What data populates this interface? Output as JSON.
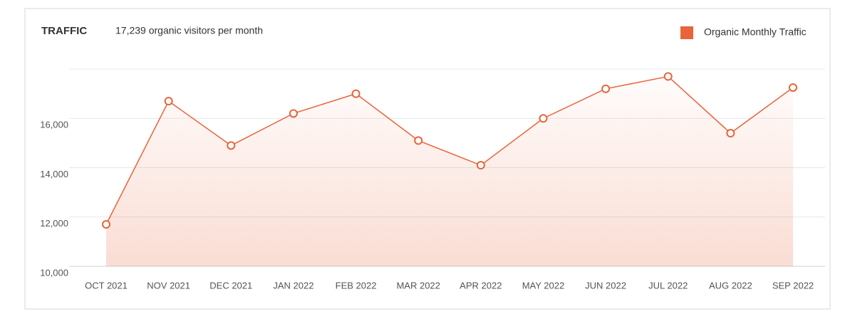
{
  "chart_data": {
    "type": "line",
    "title": "TRAFFIC",
    "subtitle": "17,239 organic visitors per month",
    "categories": [
      "OCT 2021",
      "NOV 2021",
      "DEC 2021",
      "JAN 2022",
      "FEB 2022",
      "MAR 2022",
      "APR 2022",
      "MAY 2022",
      "JUN 2022",
      "JUL 2022",
      "AUG 2022",
      "SEP 2022"
    ],
    "series": [
      {
        "name": "Organic Monthly Traffic",
        "color": "#e8643a",
        "values": [
          11700,
          16700,
          14900,
          16200,
          17000,
          15100,
          14100,
          16000,
          17200,
          17700,
          15400,
          17250
        ]
      }
    ],
    "ylim": [
      10000,
      18000
    ],
    "yticks": [
      {
        "value": 10000,
        "label": "10,000"
      },
      {
        "value": 12000,
        "label": "12,000"
      },
      {
        "value": 14000,
        "label": "14,000"
      },
      {
        "value": 16000,
        "label": "16,000"
      }
    ],
    "grid": true,
    "legend": "top-right"
  }
}
